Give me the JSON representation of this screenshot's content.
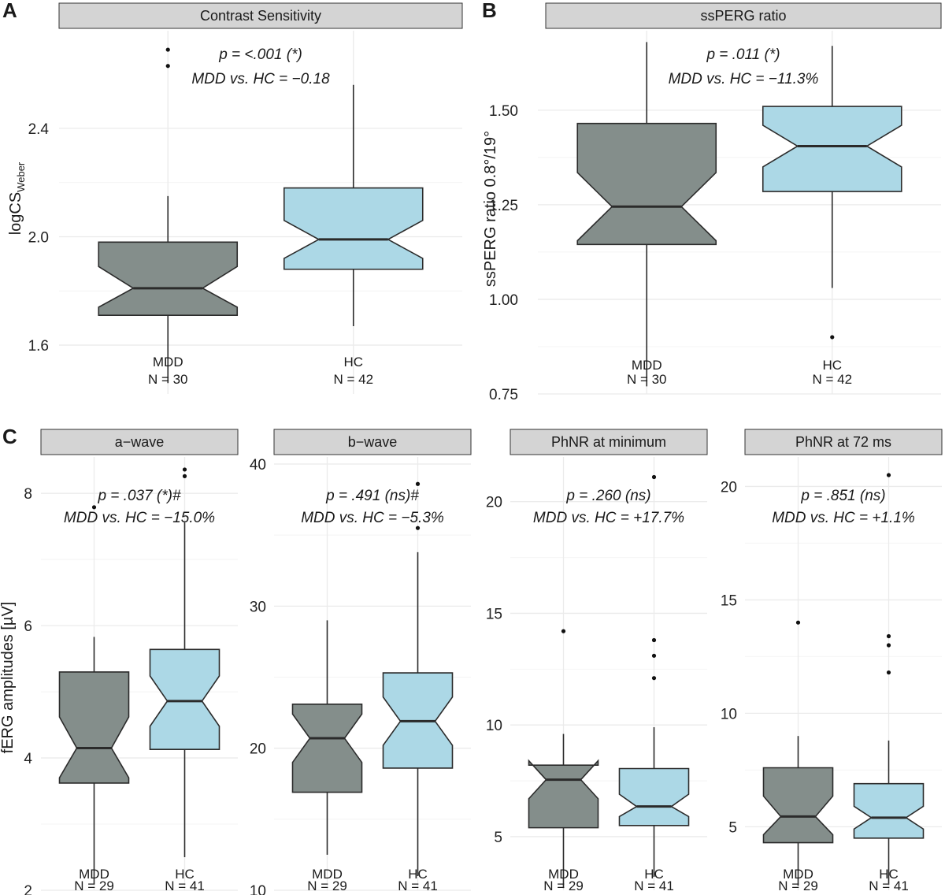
{
  "colors": {
    "MDD": "#848e8b",
    "HC": "#acd8e6",
    "strip": "#d4d4d4",
    "grid": "#ebebeb",
    "outline": "#2b2b2b"
  },
  "labels": {
    "A": "A",
    "B": "B",
    "C": "C",
    "ylabel_A_main": "logCS",
    "ylabel_A_sub": "Weber",
    "ylabel_B": "ssPERG ratio 0.8°/19°",
    "ylabel_C": "fERG amplitudes [µV]"
  },
  "chart_data": [
    {
      "id": "A",
      "type": "boxplot",
      "title": "Contrast Sensitivity",
      "stat_line1": "p = <.001 (*)",
      "stat_line2": "MDD vs. HC = −0.18",
      "ylim": [
        1.42,
        2.76
      ],
      "yticks": [
        1.6,
        2.0,
        2.4
      ],
      "ytick_labels": [
        "1.6",
        "2.0",
        "2.4"
      ],
      "groups": [
        {
          "name": "MDD",
          "n_label": "N = 30",
          "min": 1.46,
          "q1": 1.71,
          "median": 1.81,
          "q3": 1.98,
          "max": 2.15,
          "notch_low": 1.74,
          "notch_high": 1.89,
          "outliers": [
            2.69,
            2.63
          ]
        },
        {
          "name": "HC",
          "n_label": "N = 42",
          "min": 1.67,
          "q1": 1.88,
          "median": 1.99,
          "q3": 2.18,
          "max": 2.56,
          "notch_low": 1.92,
          "notch_high": 2.06,
          "outliers": []
        }
      ]
    },
    {
      "id": "B",
      "type": "boxplot",
      "title": "ssPERG ratio",
      "stat_line1": "p = .011 (*)",
      "stat_line2": "MDD vs. HC = −11.3%",
      "ylim": [
        0.75,
        1.71
      ],
      "yticks": [
        0.75,
        1.0,
        1.25,
        1.5
      ],
      "ytick_labels": [
        "0.75",
        "1.00",
        "1.25",
        "1.50"
      ],
      "groups": [
        {
          "name": "MDD",
          "n_label": "N = 30",
          "min": 0.77,
          "q1": 1.145,
          "median": 1.245,
          "q3": 1.465,
          "max": 1.68,
          "notch_low": 1.155,
          "notch_high": 1.335,
          "outliers": []
        },
        {
          "name": "HC",
          "n_label": "N = 42",
          "min": 1.03,
          "q1": 1.285,
          "median": 1.405,
          "q3": 1.51,
          "max": 1.67,
          "notch_low": 1.35,
          "notch_high": 1.46,
          "outliers": [
            0.9
          ]
        }
      ]
    },
    {
      "id": "C1",
      "type": "boxplot",
      "title": "a−wave",
      "stat_line1": "p = .037 (*)#",
      "stat_line2": "MDD vs. HC = −15.0%",
      "ylim": [
        2.0,
        8.55
      ],
      "yticks": [
        2,
        4,
        6,
        8
      ],
      "ytick_labels": [
        "2",
        "4",
        "6",
        "8"
      ],
      "groups": [
        {
          "name": "MDD",
          "n_label": "N = 29",
          "min": 2.1,
          "q1": 3.62,
          "median": 4.15,
          "q3": 5.3,
          "max": 5.83,
          "notch_low": 3.7,
          "notch_high": 4.62,
          "outliers": [
            7.79
          ]
        },
        {
          "name": "HC",
          "n_label": "N = 41",
          "min": 2.5,
          "q1": 4.13,
          "median": 4.86,
          "q3": 5.64,
          "max": 7.56,
          "notch_low": 4.48,
          "notch_high": 5.24,
          "outliers": [
            8.36,
            8.26
          ]
        }
      ]
    },
    {
      "id": "C2",
      "type": "boxplot",
      "title": "b−wave",
      "stat_line1": "p = .491 (ns)#",
      "stat_line2": "MDD vs. HC = −5.3%",
      "ylim": [
        10,
        40.5
      ],
      "yticks": [
        10,
        20,
        30,
        40
      ],
      "ytick_labels": [
        "10",
        "20",
        "30",
        "40"
      ],
      "groups": [
        {
          "name": "MDD",
          "n_label": "N = 29",
          "min": 12.5,
          "q1": 16.9,
          "median": 20.7,
          "q3": 23.1,
          "max": 29.0,
          "notch_low": 19.0,
          "notch_high": 22.4,
          "outliers": []
        },
        {
          "name": "HC",
          "n_label": "N = 41",
          "min": 11.0,
          "q1": 18.6,
          "median": 21.9,
          "q3": 25.3,
          "max": 33.8,
          "notch_low": 20.2,
          "notch_high": 23.6,
          "outliers": [
            38.6,
            35.5
          ]
        }
      ]
    },
    {
      "id": "C3",
      "type": "boxplot",
      "title": "PhNR at minimum",
      "stat_line1": "p = .260 (ns)",
      "stat_line2": "MDD vs. HC = +17.7%",
      "ylim": [
        2.6,
        22.0
      ],
      "yticks": [
        5,
        10,
        15,
        20
      ],
      "ytick_labels": [
        "5",
        "10",
        "15",
        "20"
      ],
      "groups": [
        {
          "name": "MDD",
          "n_label": "N = 29",
          "min": 2.7,
          "q1": 5.4,
          "median": 7.55,
          "q3": 8.2,
          "max": 9.6,
          "notch_low": 6.7,
          "notch_high": 8.4,
          "outliers": [
            14.2
          ]
        },
        {
          "name": "HC",
          "n_label": "N = 41",
          "min": 3.2,
          "q1": 5.5,
          "median": 6.35,
          "q3": 8.05,
          "max": 9.9,
          "notch_low": 5.9,
          "notch_high": 6.9,
          "outliers": [
            21.1,
            13.8,
            13.1,
            12.1
          ]
        }
      ]
    },
    {
      "id": "C4",
      "type": "boxplot",
      "title": "PhNR at 72 ms",
      "stat_line1": "p = .851 (ns)",
      "stat_line2": "MDD vs. HC = +1.1%",
      "ylim": [
        2.2,
        21.3
      ],
      "yticks": [
        5,
        10,
        15,
        20
      ],
      "ytick_labels": [
        "5",
        "10",
        "15",
        "20"
      ],
      "groups": [
        {
          "name": "MDD",
          "n_label": "N = 29",
          "min": 2.4,
          "q1": 4.3,
          "median": 5.45,
          "q3": 7.6,
          "max": 9.0,
          "notch_low": 4.65,
          "notch_high": 6.35,
          "outliers": [
            14.0
          ]
        },
        {
          "name": "HC",
          "n_label": "N = 41",
          "min": 2.5,
          "q1": 4.5,
          "median": 5.4,
          "q3": 6.9,
          "max": 8.8,
          "notch_low": 4.9,
          "notch_high": 5.9,
          "outliers": [
            20.5,
            13.4,
            13.0,
            11.8
          ]
        }
      ]
    }
  ]
}
